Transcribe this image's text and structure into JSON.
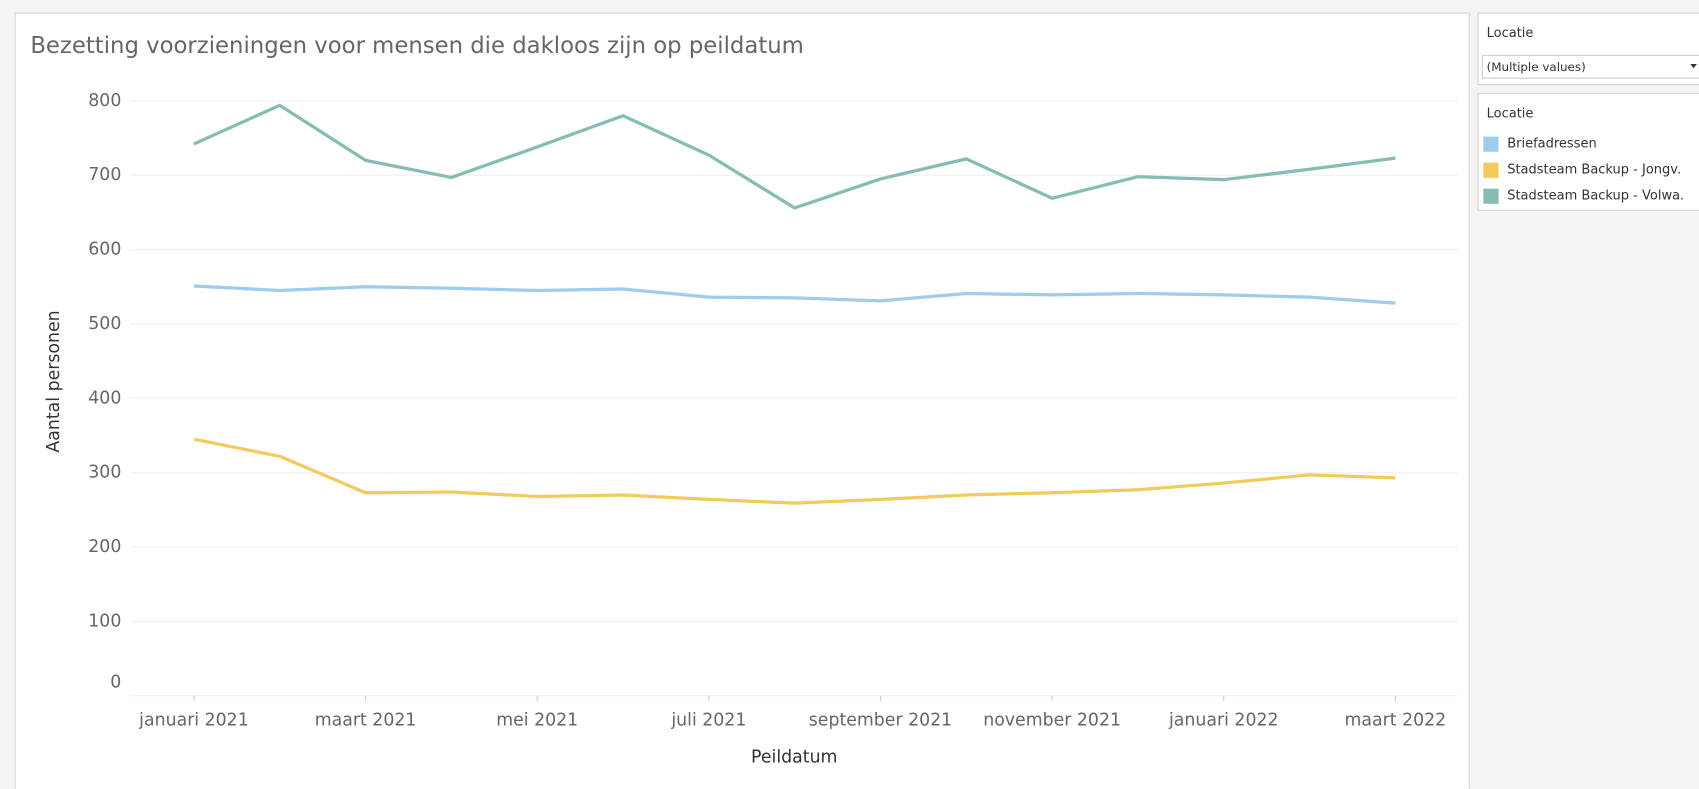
{
  "chart_data": {
    "type": "line",
    "title": "Bezetting voorzieningen voor mensen die dakloos zijn op peildatum",
    "x_label": "Peildatum",
    "y_label": "Aantal personen",
    "categories": [
      "januari 2021",
      null,
      "maart 2021",
      null,
      "mei 2021",
      null,
      "juli 2021",
      null,
      "september 2021",
      null,
      "november 2021",
      null,
      "januari 2022",
      null,
      "maart 2022"
    ],
    "series": [
      {
        "name": "Briefadressen",
        "color": "#9fcbec",
        "values": [
          551,
          545,
          550,
          548,
          545,
          547,
          536,
          535,
          531,
          541,
          539,
          541,
          539,
          536,
          528
        ]
      },
      {
        "name": "Stadsteam Backup - Jongv.",
        "color": "#f2cb5c",
        "values": [
          345,
          322,
          273,
          274,
          268,
          270,
          264,
          259,
          264,
          270,
          273,
          277,
          286,
          297,
          293
        ]
      },
      {
        "name": "Stadsteam Backup - Volwa.",
        "color": "#86bcb4",
        "values": [
          742,
          794,
          720,
          697,
          738,
          780,
          727,
          656,
          695,
          722,
          669,
          698,
          694,
          708,
          723
        ]
      }
    ],
    "ylim": [
      0,
      800
    ],
    "yticks": [
      0,
      100,
      200,
      300,
      400,
      500,
      600,
      700,
      800
    ],
    "grid": true,
    "legend_title": "Locatie"
  },
  "filter": {
    "title": "Locatie",
    "value": "(Multiple values)"
  }
}
